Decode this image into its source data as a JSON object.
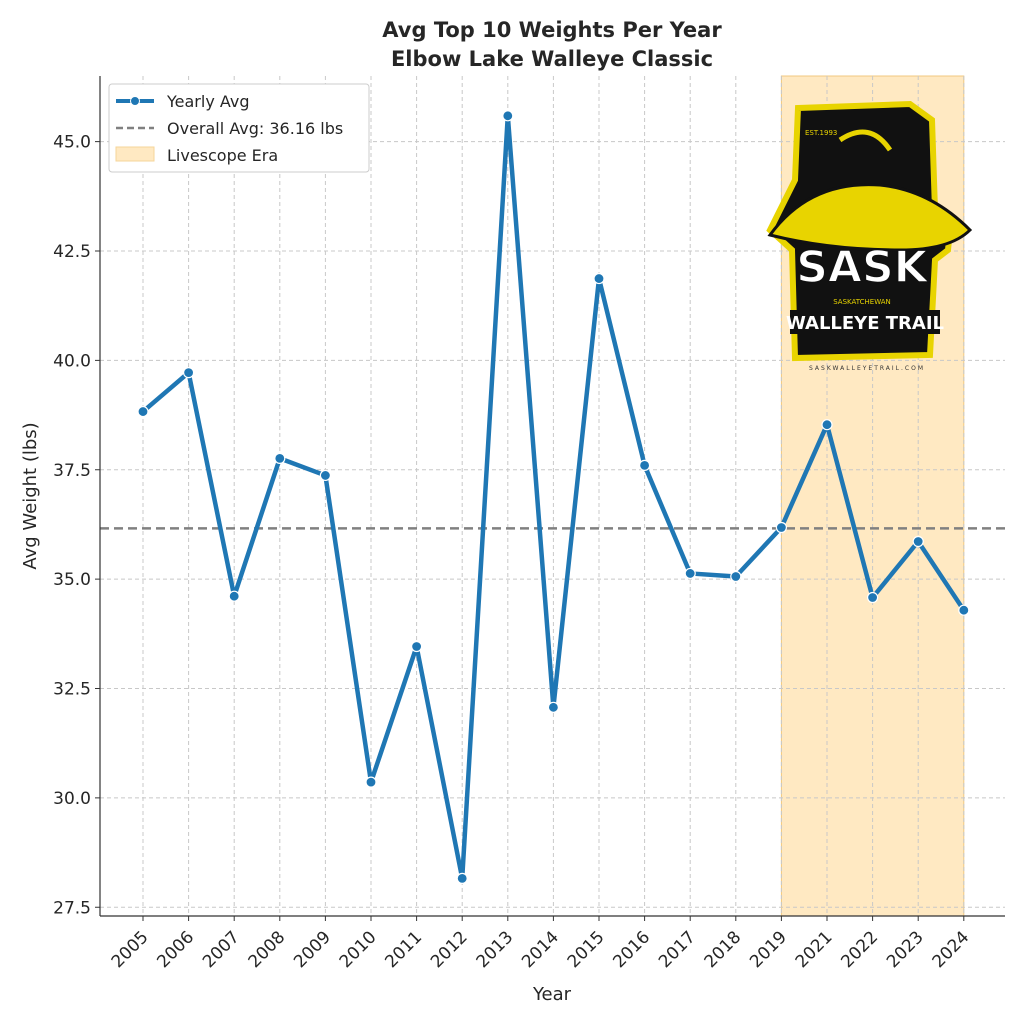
{
  "chart_data": {
    "type": "line",
    "title": "Avg Top 10 Weights Per Year",
    "subtitle": "Elbow Lake Walleye Classic",
    "xlabel": "Year",
    "ylabel": "Avg Weight (lbs)",
    "categories": [
      "2005",
      "2006",
      "2007",
      "2008",
      "2009",
      "2010",
      "2011",
      "2012",
      "2013",
      "2014",
      "2015",
      "2016",
      "2017",
      "2018",
      "2019",
      "2021",
      "2022",
      "2023",
      "2024"
    ],
    "series": [
      {
        "name": "Yearly Avg",
        "color": "#1f77b4",
        "values": [
          38.83,
          39.72,
          34.61,
          37.76,
          37.37,
          30.36,
          33.46,
          28.16,
          45.59,
          32.07,
          41.87,
          37.6,
          35.13,
          35.06,
          36.18,
          38.53,
          34.58,
          35.86,
          34.29
        ]
      }
    ],
    "reference_line": {
      "label": "Overall Avg: 36.16 lbs",
      "value": 36.16,
      "color": "#808080",
      "style": "dashed"
    },
    "shaded_region": {
      "label": "Livescope Era",
      "from": "2019",
      "to": "2024",
      "color": "#ffe9c2"
    },
    "ylim": [
      27.3,
      46.5
    ],
    "yticks": [
      "27.5",
      "30.0",
      "32.5",
      "35.0",
      "37.5",
      "40.0",
      "42.5",
      "45.0"
    ],
    "grid": true,
    "legend_position": "top-left"
  },
  "logo": {
    "est": "EST.1993",
    "name": "SASK",
    "sub": "SASKATCHEWAN",
    "trail": "WALLEYE TRAIL",
    "url": "SASKWALLEYETRAIL.COM"
  }
}
